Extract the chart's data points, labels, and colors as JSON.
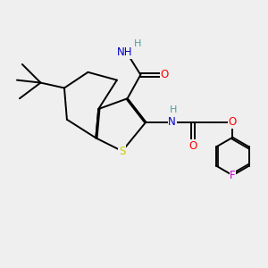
{
  "bg_color": "#efefef",
  "bond_color": "#000000",
  "bond_lw": 1.4,
  "atom_colors": {
    "S": "#cccc00",
    "O": "#ff0000",
    "N": "#0000cc",
    "H": "#4aa0a0",
    "F": "#cc00cc",
    "C": "#000000"
  },
  "font_size_atom": 8.5
}
